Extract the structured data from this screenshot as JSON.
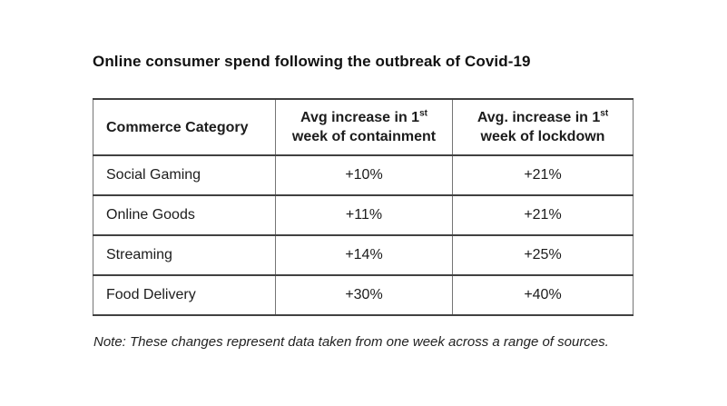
{
  "figure": {
    "title": "Online consumer spend following the outbreak of Covid-19",
    "note": "Note: These changes represent data taken from one week across a range of sources."
  },
  "table": {
    "columns": [
      {
        "label": "Commerce Category"
      },
      {
        "line1": "Avg increase in 1",
        "sup": "st",
        "line2": "week of containment"
      },
      {
        "line1": "Avg. increase in 1",
        "sup": "st",
        "line2": "week of lockdown"
      }
    ],
    "rows": [
      {
        "category": "Social Gaming",
        "containment": "+10%",
        "lockdown": "+21%"
      },
      {
        "category": "Online Goods",
        "containment": "+11%",
        "lockdown": "+21%"
      },
      {
        "category": "Streaming",
        "containment": "+14%",
        "lockdown": "+25%"
      },
      {
        "category": "Food Delivery",
        "containment": "+30%",
        "lockdown": "+40%"
      }
    ]
  },
  "chart_data": {
    "type": "table",
    "title": "Online consumer spend following the outbreak of Covid-19",
    "columns": [
      "Commerce Category",
      "Avg increase in 1st week of containment",
      "Avg. increase in 1st week of lockdown"
    ],
    "categories": [
      "Social Gaming",
      "Online Goods",
      "Streaming",
      "Food Delivery"
    ],
    "series": [
      {
        "name": "Avg increase in 1st week of containment",
        "values": [
          10,
          11,
          14,
          30
        ],
        "unit": "%"
      },
      {
        "name": "Avg. increase in 1st week of lockdown",
        "values": [
          21,
          21,
          25,
          40
        ],
        "unit": "%"
      }
    ],
    "cells": [
      [
        "Social Gaming",
        "+10%",
        "+21%"
      ],
      [
        "Online Goods",
        "+11%",
        "+21%"
      ],
      [
        "Streaming",
        "+14%",
        "+25%"
      ],
      [
        "Food Delivery",
        "+30%",
        "+40%"
      ]
    ],
    "note": "Note: These changes represent data taken from one week across a range of sources."
  },
  "colors": {
    "background": "#ffffff",
    "text": "#1c1c1c",
    "border_horizontal": "#414141",
    "border_vertical": "#757575"
  }
}
